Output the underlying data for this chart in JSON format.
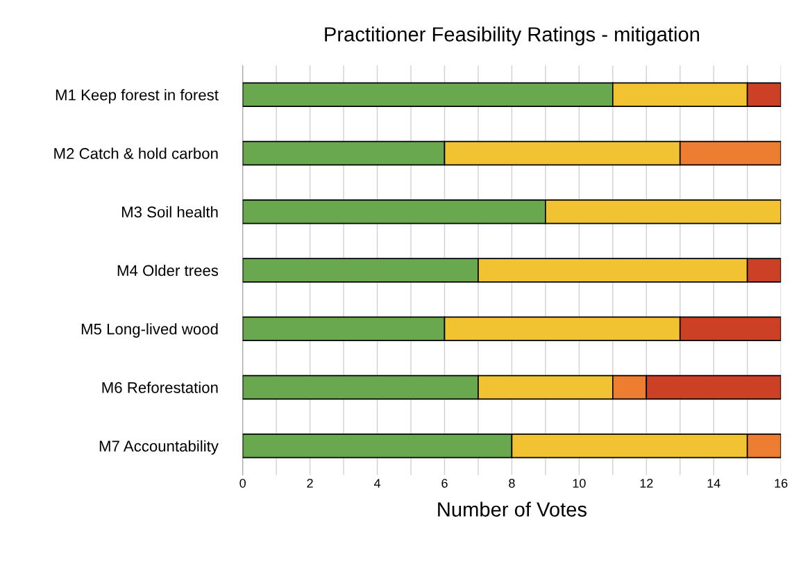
{
  "chart_data": {
    "type": "bar",
    "orientation": "horizontal",
    "stacked": true,
    "title": "Practitioner Feasibility Ratings - mitigation",
    "xlabel": "Number of Votes",
    "categories": [
      "M1 Keep forest in forest",
      "M2 Catch & hold carbon",
      "M3 Soil health",
      "M4 Older trees",
      "M5 Long-lived wood",
      "M6 Reforestation",
      "M7 Accountability"
    ],
    "series": [
      {
        "color": "#6aa84f",
        "values": [
          11,
          6,
          9,
          7,
          6,
          7,
          8
        ]
      },
      {
        "color": "#f1c232",
        "values": [
          4,
          7,
          7,
          8,
          7,
          4,
          7
        ]
      },
      {
        "color": "#ed7d31",
        "values": [
          null,
          3,
          null,
          null,
          null,
          1,
          1
        ]
      },
      {
        "color": "#cc4125",
        "values": [
          1,
          null,
          null,
          1,
          3,
          4,
          null
        ]
      }
    ],
    "xlim": [
      0,
      16
    ],
    "xticks": [
      0,
      {
        "value": 1,
        "label": null
      },
      2,
      {
        "value": 3,
        "label": null
      },
      4,
      {
        "value": 5,
        "label": null
      },
      6,
      {
        "value": 7,
        "label": null
      },
      8,
      {
        "value": 9,
        "label": null
      },
      10,
      {
        "value": 11,
        "label": null
      },
      12,
      {
        "value": 13,
        "label": null
      },
      14,
      {
        "value": 15,
        "label": null
      },
      16
    ],
    "grid": "x",
    "legend": false
  }
}
